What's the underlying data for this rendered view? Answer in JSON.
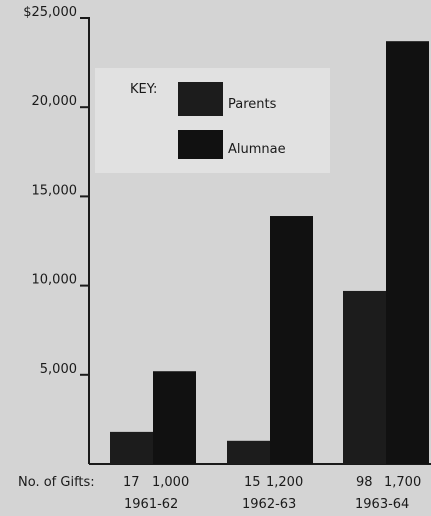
{
  "chart_data": {
    "type": "bar",
    "categories": [
      "1961-62",
      "1962-63",
      "1963-64"
    ],
    "series": [
      {
        "name": "Parents",
        "values": [
          1800,
          1300,
          9700
        ],
        "gifts": [
          "17",
          "15",
          "98"
        ]
      },
      {
        "name": "Alumnae",
        "values": [
          5200,
          13900,
          23700
        ],
        "gifts": [
          "1,000",
          "1,200",
          "1,700"
        ]
      }
    ],
    "ylim": [
      0,
      25000
    ],
    "yticks": [
      "5,000",
      "10,000",
      "15,000",
      "20,000",
      "$25,000"
    ],
    "ytick_values": [
      5000,
      10000,
      15000,
      20000,
      25000
    ],
    "gifts_label": "No. of Gifts:",
    "legend_title": "KEY:",
    "legend_placement": "top-left",
    "grid": false,
    "colors": {
      "background": "#d4d4d4",
      "legend_box": "#e1e1e1",
      "parents": "#1c1c1c",
      "alumnae": "#111111",
      "axis": "#1a1a1a"
    }
  }
}
